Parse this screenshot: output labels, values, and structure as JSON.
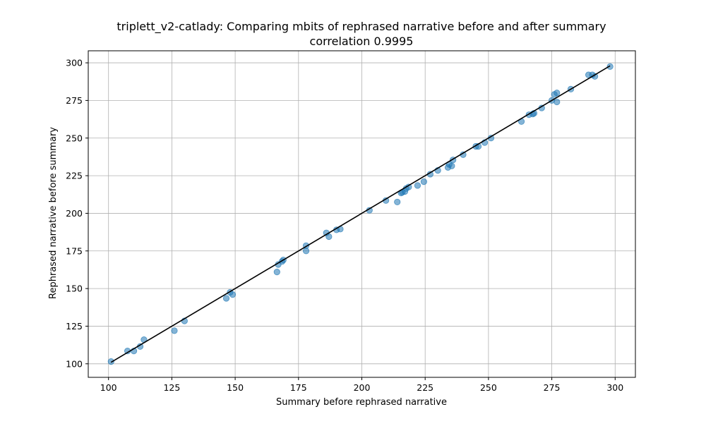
{
  "chart_data": {
    "type": "scatter",
    "title": "triplett_v2-catlady: Comparing mbits of rephrased narrative before and after summary",
    "subtitle": "correlation 0.9995",
    "xlabel": "Summary before rephrased narrative",
    "ylabel": "Rephrased narrative before summary",
    "xlim": [
      92,
      308
    ],
    "ylim": [
      91,
      308
    ],
    "xticks": [
      100,
      125,
      150,
      175,
      200,
      225,
      250,
      275,
      300
    ],
    "yticks": [
      100,
      125,
      150,
      175,
      200,
      225,
      250,
      275,
      300
    ],
    "grid": true,
    "point_color": "#1f77b4",
    "line_color": "#000000",
    "fit_line": {
      "x": [
        101,
        298
      ],
      "y": [
        101,
        298
      ]
    },
    "points": [
      [
        101,
        101.5
      ],
      [
        107.5,
        108.5
      ],
      [
        110,
        108.5
      ],
      [
        112.5,
        111.5
      ],
      [
        114,
        116
      ],
      [
        126,
        122
      ],
      [
        130,
        128.5
      ],
      [
        146.5,
        143.5
      ],
      [
        148,
        147.5
      ],
      [
        149,
        146
      ],
      [
        166.5,
        161
      ],
      [
        167,
        166
      ],
      [
        168.5,
        168
      ],
      [
        169,
        169
      ],
      [
        178,
        178.5
      ],
      [
        178,
        175
      ],
      [
        186,
        187
      ],
      [
        187,
        184.5
      ],
      [
        190,
        189
      ],
      [
        191.5,
        189.5
      ],
      [
        203,
        202
      ],
      [
        209.5,
        208.5
      ],
      [
        214,
        207.5
      ],
      [
        215.5,
        213.5
      ],
      [
        216,
        214
      ],
      [
        217,
        214.5
      ],
      [
        217.5,
        216.5
      ],
      [
        218.5,
        217.5
      ],
      [
        222,
        218.5
      ],
      [
        224.5,
        221
      ],
      [
        227,
        226
      ],
      [
        230,
        228.5
      ],
      [
        234,
        230.5
      ],
      [
        234.5,
        232.5
      ],
      [
        235.5,
        231.5
      ],
      [
        236,
        235.5
      ],
      [
        240,
        239
      ],
      [
        245,
        244.5
      ],
      [
        246,
        244.5
      ],
      [
        248.5,
        247
      ],
      [
        251,
        250
      ],
      [
        263,
        261
      ],
      [
        266,
        265.5
      ],
      [
        267.5,
        266
      ],
      [
        268,
        266.5
      ],
      [
        271,
        270
      ],
      [
        275,
        275
      ],
      [
        276,
        279
      ],
      [
        277,
        280
      ],
      [
        277,
        274
      ],
      [
        282.5,
        282.5
      ],
      [
        289.5,
        292
      ],
      [
        291,
        292
      ],
      [
        292,
        291
      ],
      [
        298,
        297.5
      ]
    ]
  }
}
